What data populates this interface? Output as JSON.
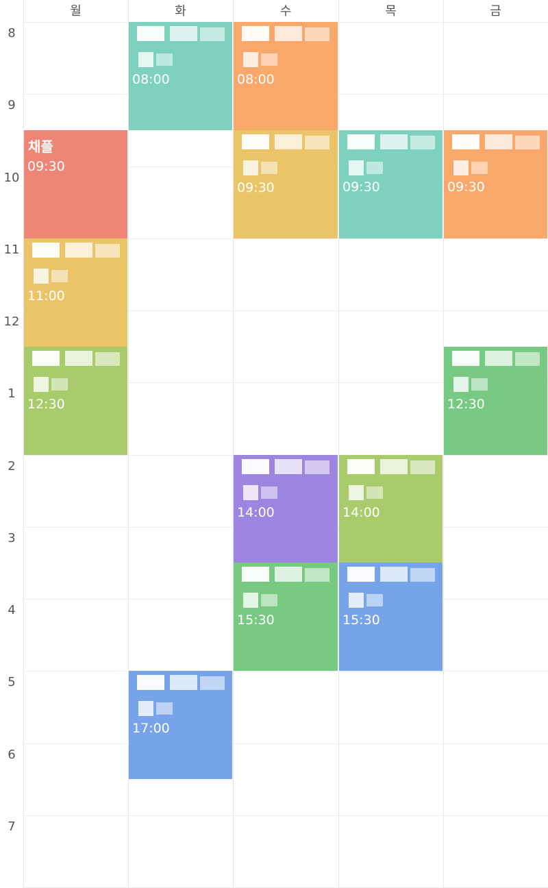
{
  "days": [
    "월",
    "화",
    "수",
    "목",
    "금"
  ],
  "hours": [
    "8",
    "9",
    "10",
    "11",
    "12",
    "1",
    "2",
    "3",
    "4",
    "5",
    "6",
    "7"
  ],
  "events": [
    {
      "day": "화",
      "time": "08:00",
      "start_hour": 8.0,
      "end_hour": 9.5,
      "color": "#7ed0bf",
      "title": "",
      "redacted": true
    },
    {
      "day": "수",
      "time": "08:00",
      "start_hour": 8.0,
      "end_hour": 9.5,
      "color": "#f8a86a",
      "title": "",
      "redacted": true
    },
    {
      "day": "월",
      "time": "09:30",
      "start_hour": 9.5,
      "end_hour": 11.0,
      "color": "#ee8678",
      "title": "채플",
      "redacted": false
    },
    {
      "day": "수",
      "time": "09:30",
      "start_hour": 9.5,
      "end_hour": 11.0,
      "color": "#ebc468",
      "title": "",
      "redacted": true
    },
    {
      "day": "목",
      "time": "09:30",
      "start_hour": 9.5,
      "end_hour": 11.0,
      "color": "#7ed0bf",
      "title": "",
      "redacted": true
    },
    {
      "day": "금",
      "time": "09:30",
      "start_hour": 9.5,
      "end_hour": 11.0,
      "color": "#f8a86a",
      "title": "",
      "redacted": true
    },
    {
      "day": "월",
      "time": "11:00",
      "start_hour": 11.0,
      "end_hour": 12.5,
      "color": "#ebc468",
      "title": "",
      "redacted": true
    },
    {
      "day": "월",
      "time": "12:30",
      "start_hour": 12.5,
      "end_hour": 14.0,
      "color": "#a8cc6c",
      "title": "",
      "redacted": true
    },
    {
      "day": "금",
      "time": "12:30",
      "start_hour": 12.5,
      "end_hour": 14.0,
      "color": "#78c982",
      "title": "",
      "redacted": true
    },
    {
      "day": "수",
      "time": "14:00",
      "start_hour": 14.0,
      "end_hour": 15.5,
      "color": "#9d86df",
      "title": "",
      "redacted": true
    },
    {
      "day": "목",
      "time": "14:00",
      "start_hour": 14.0,
      "end_hour": 15.5,
      "color": "#a8cc6c",
      "title": "",
      "redacted": true
    },
    {
      "day": "수",
      "time": "15:30",
      "start_hour": 15.5,
      "end_hour": 17.0,
      "color": "#78c982",
      "title": "",
      "redacted": true
    },
    {
      "day": "목",
      "time": "15:30",
      "start_hour": 15.5,
      "end_hour": 17.0,
      "color": "#77a4e8",
      "title": "",
      "redacted": true
    },
    {
      "day": "화",
      "time": "17:00",
      "start_hour": 17.0,
      "end_hour": 18.5,
      "color": "#77a4e8",
      "title": "",
      "redacted": true
    }
  ]
}
